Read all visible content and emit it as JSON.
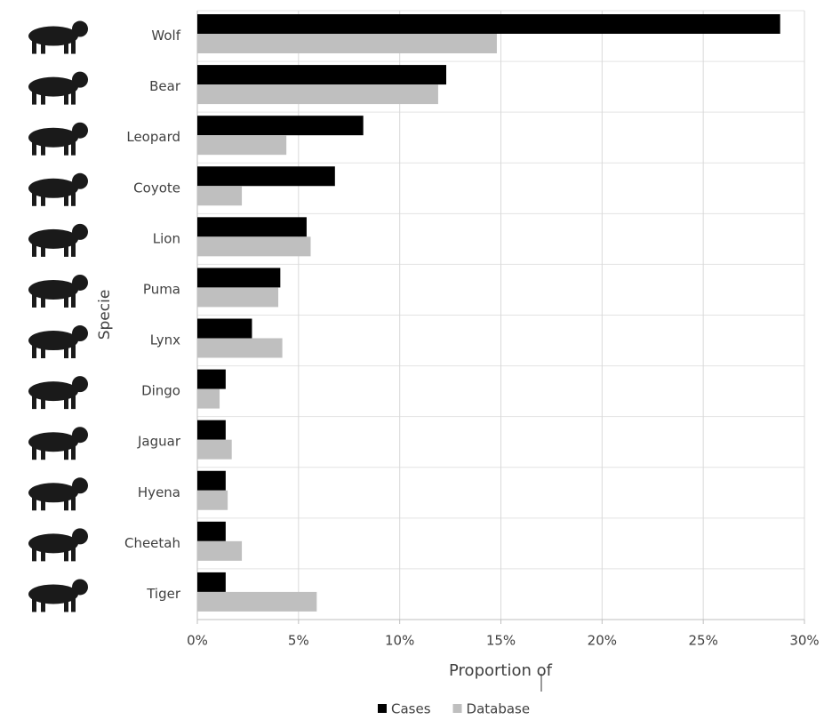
{
  "chart_data": {
    "type": "hbar",
    "x_label": "Proportion of",
    "y_label": "Specie",
    "categories": [
      "Wolf",
      "Bear",
      "Leopard",
      "Coyote",
      "Lion",
      "Puma",
      "Lynx",
      "Dingo",
      "Jaguar",
      "Hyena",
      "Cheetah",
      "Tiger"
    ],
    "series": [
      {
        "name": "Cases",
        "color": "#000000",
        "values": [
          28.8,
          12.3,
          8.2,
          6.8,
          5.4,
          4.1,
          2.7,
          1.4,
          1.4,
          1.4,
          1.4,
          1.4
        ]
      },
      {
        "name": "Database",
        "color": "#bfbfbf",
        "values": [
          14.8,
          11.9,
          4.4,
          2.2,
          5.6,
          4.0,
          4.2,
          1.1,
          1.7,
          1.5,
          2.2,
          5.9
        ]
      }
    ],
    "xlim": [
      0,
      30
    ],
    "xticks": [
      {
        "value": 0,
        "label": "0%"
      },
      {
        "value": 5,
        "label": "5%"
      },
      {
        "value": 10,
        "label": "10%"
      },
      {
        "value": 15,
        "label": "15%"
      },
      {
        "value": 20,
        "label": "20%"
      },
      {
        "value": 25,
        "label": "25%"
      },
      {
        "value": 30,
        "label": "30%"
      }
    ],
    "grid": true,
    "legend": "bottom"
  }
}
